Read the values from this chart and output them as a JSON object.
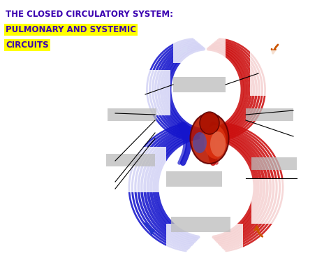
{
  "title_line1": "THE CLOSED CIRCULATORY SYSTEM:",
  "title_line2": "PULMONARY AND SYSTEMIC",
  "title_line3": "CIRCUITS",
  "title_color": "#3a00b0",
  "highlight_color": "#FFFF00",
  "bg_color": "#FFFFFF",
  "fig_width": 4.74,
  "fig_height": 3.69,
  "dpi": 100,
  "blue_color": "#1515cc",
  "red_color": "#cc1010",
  "heart_red": "#cc2200",
  "heart_orange": "#dd6633"
}
